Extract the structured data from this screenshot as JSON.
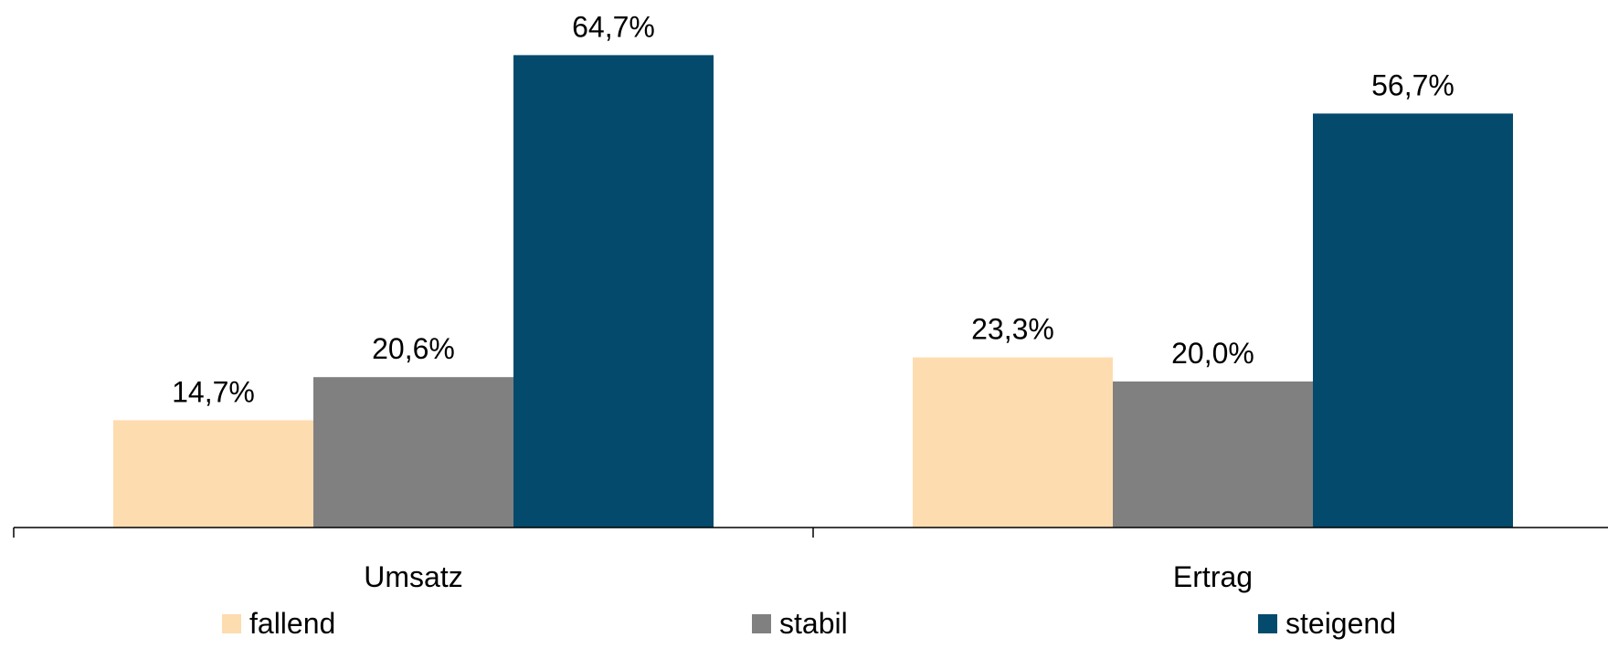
{
  "chart_data": {
    "type": "bar",
    "categories": [
      "Umsatz",
      "Ertrag"
    ],
    "series": [
      {
        "name": "fallend",
        "values": [
          14.7,
          23.3
        ],
        "labels": [
          "14,7%",
          "23,3%"
        ],
        "color": "#FDDCB0"
      },
      {
        "name": "stabil",
        "values": [
          20.6,
          20.0
        ],
        "labels": [
          "20,6%",
          "20,0%"
        ],
        "color": "#808080"
      },
      {
        "name": "steigend",
        "values": [
          64.7,
          56.7
        ],
        "labels": [
          "64,7%",
          "56,7%"
        ],
        "color": "#044A6D"
      }
    ],
    "ylim": [
      0,
      70
    ],
    "grid": false,
    "legend_position": "bottom",
    "axis_color": "#000000"
  }
}
